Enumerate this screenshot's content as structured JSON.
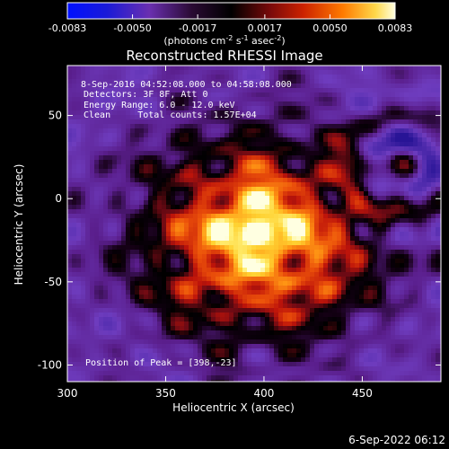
{
  "chart_data": {
    "type": "heatmap",
    "title": "Reconstructed RHESSI Image",
    "xlabel": "Heliocentric X (arcsec)",
    "ylabel": "Heliocentric Y (arcsec)",
    "xlim": [
      300,
      490
    ],
    "ylim": [
      -110,
      80
    ],
    "x_ticks": [
      300,
      350,
      400,
      450
    ],
    "y_ticks": [
      -100,
      -50,
      0,
      50
    ],
    "colorbar": {
      "ticks": [
        "-0.0083",
        "-0.0050",
        "-0.0017",
        "0.0017",
        "0.0050",
        "0.0083"
      ],
      "values": [
        -0.0083,
        -0.005,
        -0.0017,
        0.0017,
        0.005,
        0.0083
      ],
      "units_label": "(photons cm",
      "units_sup1": "-2",
      "units_mid": " s",
      "units_sup2": "-1",
      "units_mid2": " asec",
      "units_sup3": "-2",
      "units_end": ")",
      "colormap": "blue-white-red (Rainbow variant)"
    },
    "annotations": [
      "8-Sep-2016 04:52:08.000 to 04:58:08.000",
      "Detectors: 3F 8F, Att 0",
      "Energy Range: 6.0 - 12.0 keV",
      "Clean     Total counts: 1.57E+04"
    ],
    "peak_label": "Position of Peak = [398,-23]",
    "peak": [
      398,
      -23
    ],
    "footer_timestamp": "6-Sep-2022 06:12"
  }
}
